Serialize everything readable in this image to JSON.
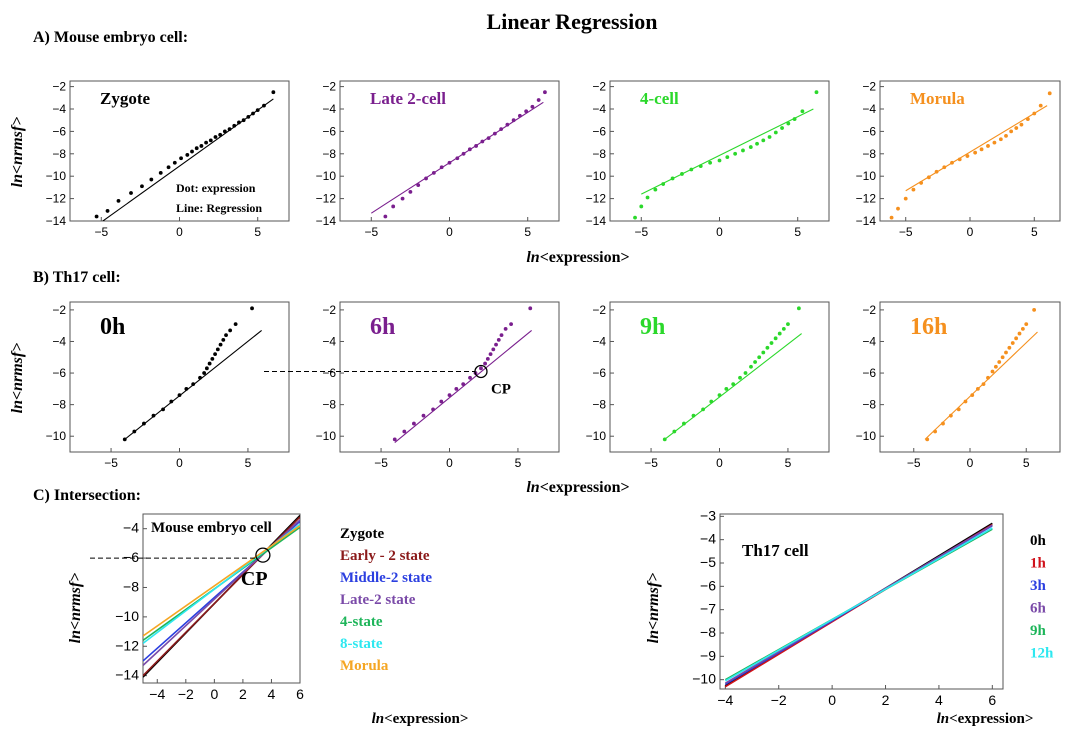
{
  "title": "Linear Regression",
  "sections": {
    "a": "A) Mouse embryo cell:",
    "b": "B) Th17 cell:",
    "c": "C) Intersection:"
  },
  "ylabel": "ln<nrmsf>",
  "xlabel": "ln<expression>",
  "axis_label_parts": {
    "ln": "ln",
    "y_rest": "<nrmsf>",
    "x_rest": "<expression>"
  },
  "annotations": {
    "dot_legend": "Dot: expression",
    "line_legend": "Line: Regression",
    "cp": "CP",
    "embryo_box": "Mouse embryo cell",
    "th17_box": "Th17 cell"
  },
  "colors": {
    "black": "#000000",
    "purple": "#7a1f8e",
    "green": "#2bd82b",
    "orange": "#f5901e",
    "dark_red": "#8b1a1a",
    "red": "#d0121b",
    "blue": "#2b3fe0",
    "violet": "#7a4aa8",
    "emerald": "#1eb55a",
    "cyan": "#2ee8f0",
    "gold": "#f5a623"
  },
  "chart_data": [
    {
      "type": "scatter",
      "id": "A1",
      "label": "Zygote",
      "color": "#000000",
      "xlim": [
        -7,
        7
      ],
      "ylim": [
        -14,
        -1.5
      ],
      "xticks": [
        -5,
        0,
        5
      ],
      "yticks": [
        -14,
        -12,
        -10,
        -8,
        -6,
        -4,
        -2
      ],
      "points": [
        [
          -5.3,
          -13.6
        ],
        [
          -4.6,
          -13.1
        ],
        [
          -3.9,
          -12.2
        ],
        [
          -3.1,
          -11.5
        ],
        [
          -2.4,
          -10.9
        ],
        [
          -1.8,
          -10.3
        ],
        [
          -1.2,
          -9.7
        ],
        [
          -0.7,
          -9.2
        ],
        [
          -0.3,
          -8.8
        ],
        [
          0.1,
          -8.4
        ],
        [
          0.5,
          -8.1
        ],
        [
          0.8,
          -7.8
        ],
        [
          1.1,
          -7.5
        ],
        [
          1.4,
          -7.3
        ],
        [
          1.7,
          -7.0
        ],
        [
          2.0,
          -6.8
        ],
        [
          2.3,
          -6.5
        ],
        [
          2.6,
          -6.3
        ],
        [
          2.9,
          -6.0
        ],
        [
          3.2,
          -5.8
        ],
        [
          3.5,
          -5.5
        ],
        [
          3.8,
          -5.2
        ],
        [
          4.1,
          -5.0
        ],
        [
          4.4,
          -4.7
        ],
        [
          4.7,
          -4.4
        ],
        [
          5.0,
          -4.1
        ],
        [
          5.4,
          -3.7
        ],
        [
          6.0,
          -2.5
        ]
      ],
      "line": [
        [
          -5.0,
          -14.1
        ],
        [
          6.0,
          -3.1
        ]
      ]
    },
    {
      "type": "scatter",
      "id": "A2",
      "label": "Late 2-cell",
      "color": "#7a1f8e",
      "xlim": [
        -7,
        7
      ],
      "ylim": [
        -14,
        -1.5
      ],
      "xticks": [
        -5,
        0,
        5
      ],
      "yticks": [
        -14,
        -12,
        -10,
        -8,
        -6,
        -4,
        -2
      ],
      "points": [
        [
          -4.1,
          -13.6
        ],
        [
          -3.6,
          -12.7
        ],
        [
          -3.0,
          -12.0
        ],
        [
          -2.5,
          -11.4
        ],
        [
          -2.0,
          -10.8
        ],
        [
          -1.5,
          -10.2
        ],
        [
          -1.0,
          -9.7
        ],
        [
          -0.5,
          -9.2
        ],
        [
          0.0,
          -8.8
        ],
        [
          0.5,
          -8.4
        ],
        [
          0.9,
          -8.0
        ],
        [
          1.3,
          -7.6
        ],
        [
          1.7,
          -7.3
        ],
        [
          2.1,
          -6.9
        ],
        [
          2.5,
          -6.6
        ],
        [
          2.9,
          -6.2
        ],
        [
          3.3,
          -5.8
        ],
        [
          3.7,
          -5.4
        ],
        [
          4.1,
          -5.0
        ],
        [
          4.5,
          -4.6
        ],
        [
          4.9,
          -4.2
        ],
        [
          5.3,
          -3.8
        ],
        [
          5.7,
          -3.2
        ],
        [
          6.1,
          -2.5
        ]
      ],
      "line": [
        [
          -5.0,
          -13.3
        ],
        [
          6.0,
          -3.4
        ]
      ]
    },
    {
      "type": "scatter",
      "id": "A3",
      "label": "4-cell",
      "color": "#2bd82b",
      "xlim": [
        -7,
        7
      ],
      "ylim": [
        -14,
        -1.5
      ],
      "xticks": [
        -5,
        0,
        5
      ],
      "yticks": [
        -14,
        -12,
        -10,
        -8,
        -6,
        -4,
        -2
      ],
      "points": [
        [
          -5.4,
          -13.7
        ],
        [
          -5.0,
          -12.7
        ],
        [
          -4.6,
          -11.9
        ],
        [
          -4.1,
          -11.2
        ],
        [
          -3.6,
          -10.7
        ],
        [
          -3.0,
          -10.2
        ],
        [
          -2.4,
          -9.8
        ],
        [
          -1.8,
          -9.4
        ],
        [
          -1.2,
          -9.1
        ],
        [
          -0.6,
          -8.8
        ],
        [
          0.0,
          -8.6
        ],
        [
          0.5,
          -8.3
        ],
        [
          1.0,
          -8.0
        ],
        [
          1.5,
          -7.7
        ],
        [
          2.0,
          -7.4
        ],
        [
          2.4,
          -7.1
        ],
        [
          2.8,
          -6.8
        ],
        [
          3.2,
          -6.5
        ],
        [
          3.6,
          -6.1
        ],
        [
          4.0,
          -5.7
        ],
        [
          4.4,
          -5.3
        ],
        [
          4.8,
          -4.9
        ],
        [
          5.3,
          -4.2
        ],
        [
          6.2,
          -2.5
        ]
      ],
      "line": [
        [
          -5.0,
          -11.6
        ],
        [
          6.0,
          -4.0
        ]
      ]
    },
    {
      "type": "scatter",
      "id": "A4",
      "label": "Morula",
      "color": "#f5901e",
      "xlim": [
        -7,
        7
      ],
      "ylim": [
        -14,
        -1.5
      ],
      "xticks": [
        -5,
        0,
        5
      ],
      "yticks": [
        -14,
        -12,
        -10,
        -8,
        -6,
        -4,
        -2
      ],
      "points": [
        [
          -6.1,
          -13.7
        ],
        [
          -5.6,
          -12.9
        ],
        [
          -5.0,
          -12.0
        ],
        [
          -4.4,
          -11.2
        ],
        [
          -3.8,
          -10.6
        ],
        [
          -3.2,
          -10.1
        ],
        [
          -2.6,
          -9.6
        ],
        [
          -2.0,
          -9.2
        ],
        [
          -1.4,
          -8.8
        ],
        [
          -0.8,
          -8.5
        ],
        [
          -0.2,
          -8.2
        ],
        [
          0.4,
          -7.9
        ],
        [
          0.9,
          -7.6
        ],
        [
          1.4,
          -7.3
        ],
        [
          1.9,
          -7.0
        ],
        [
          2.4,
          -6.7
        ],
        [
          2.8,
          -6.4
        ],
        [
          3.2,
          -6.0
        ],
        [
          3.6,
          -5.7
        ],
        [
          4.0,
          -5.4
        ],
        [
          4.5,
          -4.9
        ],
        [
          5.0,
          -4.4
        ],
        [
          5.5,
          -3.7
        ],
        [
          6.2,
          -2.6
        ]
      ],
      "line": [
        [
          -5.0,
          -11.3
        ],
        [
          6.0,
          -3.7
        ]
      ]
    },
    {
      "type": "scatter",
      "id": "B1",
      "label": "0h",
      "color": "#000000",
      "xlim": [
        -8,
        8
      ],
      "ylim": [
        -11,
        -1.5
      ],
      "xticks": [
        -5,
        0,
        5
      ],
      "yticks": [
        -10,
        -8,
        -6,
        -4,
        -2
      ],
      "points": [
        [
          -4.0,
          -10.2
        ],
        [
          -3.3,
          -9.7
        ],
        [
          -2.6,
          -9.2
        ],
        [
          -1.9,
          -8.7
        ],
        [
          -1.2,
          -8.3
        ],
        [
          -0.6,
          -7.8
        ],
        [
          0.0,
          -7.4
        ],
        [
          0.5,
          -7.0
        ],
        [
          1.0,
          -6.7
        ],
        [
          1.5,
          -6.3
        ],
        [
          1.8,
          -6.0
        ],
        [
          2.0,
          -5.7
        ],
        [
          2.2,
          -5.4
        ],
        [
          2.4,
          -5.1
        ],
        [
          2.6,
          -4.8
        ],
        [
          2.8,
          -4.5
        ],
        [
          3.0,
          -4.2
        ],
        [
          3.2,
          -3.9
        ],
        [
          3.4,
          -3.6
        ],
        [
          3.7,
          -3.3
        ],
        [
          4.1,
          -2.9
        ],
        [
          5.3,
          -1.9
        ]
      ],
      "line": [
        [
          -4.0,
          -10.2
        ],
        [
          6.0,
          -3.3
        ]
      ]
    },
    {
      "type": "scatter",
      "id": "B2",
      "label": "6h",
      "color": "#7a1f8e",
      "xlim": [
        -8,
        8
      ],
      "ylim": [
        -11,
        -1.5
      ],
      "xticks": [
        -5,
        0,
        5
      ],
      "yticks": [
        -10,
        -8,
        -6,
        -4,
        -2
      ],
      "points": [
        [
          -4.0,
          -10.2
        ],
        [
          -3.3,
          -9.7
        ],
        [
          -2.6,
          -9.2
        ],
        [
          -1.9,
          -8.7
        ],
        [
          -1.2,
          -8.3
        ],
        [
          -0.6,
          -7.8
        ],
        [
          0.0,
          -7.4
        ],
        [
          0.5,
          -7.0
        ],
        [
          1.0,
          -6.7
        ],
        [
          1.5,
          -6.3
        ],
        [
          1.9,
          -6.0
        ],
        [
          2.3,
          -5.7
        ],
        [
          2.6,
          -5.4
        ],
        [
          2.8,
          -5.1
        ],
        [
          3.0,
          -4.8
        ],
        [
          3.2,
          -4.5
        ],
        [
          3.4,
          -4.2
        ],
        [
          3.6,
          -3.9
        ],
        [
          3.8,
          -3.6
        ],
        [
          4.1,
          -3.2
        ],
        [
          4.5,
          -2.9
        ],
        [
          5.9,
          -1.9
        ]
      ],
      "line": [
        [
          -4.0,
          -10.4
        ],
        [
          6.0,
          -3.3
        ]
      ],
      "cp": [
        2.3,
        -5.9
      ]
    },
    {
      "type": "scatter",
      "id": "B3",
      "label": "9h",
      "color": "#2bd82b",
      "xlim": [
        -8,
        8
      ],
      "ylim": [
        -11,
        -1.5
      ],
      "xticks": [
        -5,
        0,
        5
      ],
      "yticks": [
        -10,
        -8,
        -6,
        -4,
        -2
      ],
      "points": [
        [
          -4.0,
          -10.2
        ],
        [
          -3.3,
          -9.7
        ],
        [
          -2.6,
          -9.2
        ],
        [
          -1.9,
          -8.7
        ],
        [
          -1.2,
          -8.3
        ],
        [
          -0.6,
          -7.8
        ],
        [
          0.0,
          -7.4
        ],
        [
          0.5,
          -7.0
        ],
        [
          1.0,
          -6.7
        ],
        [
          1.5,
          -6.3
        ],
        [
          1.9,
          -6.0
        ],
        [
          2.3,
          -5.6
        ],
        [
          2.6,
          -5.3
        ],
        [
          2.9,
          -5.0
        ],
        [
          3.2,
          -4.7
        ],
        [
          3.5,
          -4.4
        ],
        [
          3.8,
          -4.1
        ],
        [
          4.1,
          -3.8
        ],
        [
          4.4,
          -3.5
        ],
        [
          4.7,
          -3.2
        ],
        [
          5.0,
          -2.9
        ],
        [
          5.8,
          -1.9
        ]
      ],
      "line": [
        [
          -4.0,
          -10.2
        ],
        [
          6.0,
          -3.5
        ]
      ]
    },
    {
      "type": "scatter",
      "id": "B4",
      "label": "16h",
      "color": "#f5901e",
      "xlim": [
        -8,
        8
      ],
      "ylim": [
        -11,
        -1.5
      ],
      "xticks": [
        -5,
        0,
        5
      ],
      "yticks": [
        -10,
        -8,
        -6,
        -4,
        -2
      ],
      "points": [
        [
          -3.8,
          -10.2
        ],
        [
          -3.1,
          -9.7
        ],
        [
          -2.4,
          -9.2
        ],
        [
          -1.7,
          -8.7
        ],
        [
          -1.0,
          -8.3
        ],
        [
          -0.4,
          -7.8
        ],
        [
          0.2,
          -7.4
        ],
        [
          0.7,
          -7.0
        ],
        [
          1.2,
          -6.7
        ],
        [
          1.6,
          -6.3
        ],
        [
          2.0,
          -5.9
        ],
        [
          2.3,
          -5.6
        ],
        [
          2.6,
          -5.3
        ],
        [
          2.9,
          -5.0
        ],
        [
          3.2,
          -4.7
        ],
        [
          3.5,
          -4.4
        ],
        [
          3.8,
          -4.1
        ],
        [
          4.1,
          -3.8
        ],
        [
          4.4,
          -3.5
        ],
        [
          4.7,
          -3.2
        ],
        [
          5.0,
          -2.9
        ],
        [
          5.7,
          -2.0
        ]
      ],
      "line": [
        [
          -4.0,
          -10.2
        ],
        [
          6.0,
          -3.4
        ]
      ]
    },
    {
      "type": "line",
      "id": "C1",
      "box_label": "Mouse embryo cell",
      "xlim": [
        -5,
        6
      ],
      "ylim": [
        -14.5,
        -3
      ],
      "xticks": [
        -4,
        -2,
        0,
        2,
        4,
        6
      ],
      "yticks": [
        -14,
        -12,
        -10,
        -8,
        -6,
        -4
      ],
      "cp": [
        3.4,
        -5.8
      ],
      "series": [
        {
          "name": "Zygote",
          "color": "#000000",
          "values": [
            [
              -5,
              -14.1
            ],
            [
              6,
              -3.1
            ]
          ]
        },
        {
          "name": "Early - 2 state",
          "color": "#8b1a1a",
          "values": [
            [
              -5,
              -14.0
            ],
            [
              6,
              -3.2
            ]
          ]
        },
        {
          "name": "Middle-2 state",
          "color": "#2b3fe0",
          "values": [
            [
              -5,
              -13.0
            ],
            [
              6,
              -3.5
            ]
          ]
        },
        {
          "name": "Late-2 state",
          "color": "#7a4aa8",
          "values": [
            [
              -5,
              -13.3
            ],
            [
              6,
              -3.4
            ]
          ]
        },
        {
          "name": "4-state",
          "color": "#1eb55a",
          "values": [
            [
              -5,
              -11.6
            ],
            [
              6,
              -3.9
            ]
          ]
        },
        {
          "name": "8-state",
          "color": "#2ee8f0",
          "values": [
            [
              -5,
              -11.8
            ],
            [
              6,
              -3.7
            ]
          ]
        },
        {
          "name": "Morula",
          "color": "#f5a623",
          "values": [
            [
              -5,
              -11.3
            ],
            [
              6,
              -3.8
            ]
          ]
        }
      ]
    },
    {
      "type": "line",
      "id": "C2",
      "box_label": "Th17 cell",
      "xlim": [
        -4.2,
        6.4
      ],
      "ylim": [
        -10.4,
        -2.9
      ],
      "xticks": [
        -4,
        -2,
        0,
        2,
        4,
        6
      ],
      "yticks": [
        -10,
        -9,
        -8,
        -7,
        -6,
        -5,
        -4,
        -3
      ],
      "series": [
        {
          "name": "0h",
          "color": "#000000",
          "values": [
            [
              -4,
              -10.25
            ],
            [
              6,
              -3.3
            ]
          ]
        },
        {
          "name": "1h",
          "color": "#d0121b",
          "values": [
            [
              -4,
              -10.3
            ],
            [
              6,
              -3.35
            ]
          ]
        },
        {
          "name": "3h",
          "color": "#2b3fe0",
          "values": [
            [
              -4,
              -10.2
            ],
            [
              6,
              -3.4
            ]
          ]
        },
        {
          "name": "6h",
          "color": "#7a4aa8",
          "values": [
            [
              -4,
              -10.15
            ],
            [
              6,
              -3.38
            ]
          ]
        },
        {
          "name": "9h",
          "color": "#1eb55a",
          "values": [
            [
              -4,
              -10.0
            ],
            [
              6,
              -3.55
            ]
          ]
        },
        {
          "name": "12h",
          "color": "#2ee8f0",
          "values": [
            [
              -4,
              -10.05
            ],
            [
              6,
              -3.5
            ]
          ]
        }
      ]
    }
  ]
}
